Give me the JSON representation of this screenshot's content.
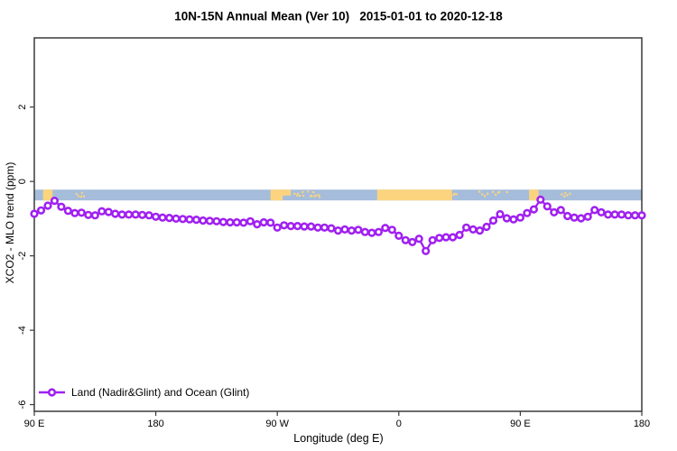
{
  "chart_data": {
    "type": "line",
    "title": "10N-15N Annual Mean (Ver 10)   2015-01-01 to 2020-12-18",
    "xlabel": "Longitude (deg E)",
    "ylabel": "XCO2 - MLO trend (ppm)",
    "xlim": [
      90,
      540
    ],
    "ylim": [
      -6.18,
      3.86
    ],
    "grid": false,
    "x_ticks": [
      {
        "x": 90,
        "label": "90 E"
      },
      {
        "x": 180,
        "label": "180"
      },
      {
        "x": 270,
        "label": "90 W"
      },
      {
        "x": 360,
        "label": "0"
      },
      {
        "x": 450,
        "label": "90 E"
      },
      {
        "x": 540,
        "label": "180"
      }
    ],
    "y_ticks": [
      {
        "v": 2,
        "label": "2"
      },
      {
        "v": 0,
        "label": "0"
      },
      {
        "v": -2,
        "label": "-2"
      },
      {
        "v": -4,
        "label": "-4"
      },
      {
        "v": -6,
        "label": "-6"
      }
    ],
    "axis_color": "#3a3a3a",
    "legend": {
      "position": "bottom-left"
    },
    "series": [
      {
        "name": "Land (Nadir&Glint) and Ocean (Glint)",
        "color": "#A020F0",
        "marker": "open-circle",
        "x": [
          90,
          95,
          100,
          105,
          110,
          115,
          120,
          125,
          130,
          135,
          140,
          145,
          150,
          155,
          160,
          165,
          170,
          175,
          180,
          185,
          190,
          195,
          200,
          205,
          210,
          215,
          220,
          225,
          230,
          235,
          240,
          245,
          250,
          255,
          260,
          265,
          270,
          275,
          280,
          285,
          290,
          295,
          300,
          305,
          310,
          315,
          320,
          325,
          330,
          335,
          340,
          345,
          350,
          355,
          360,
          365,
          370,
          375,
          380,
          385,
          390,
          395,
          400,
          405,
          410,
          415,
          420,
          425,
          430,
          435,
          440,
          445,
          450,
          455,
          460,
          465,
          470,
          475,
          480,
          485,
          490,
          495,
          500,
          505,
          510,
          515,
          520,
          525,
          530,
          535,
          540
        ],
        "values": [
          -0.87,
          -0.78,
          -0.65,
          -0.52,
          -0.68,
          -0.79,
          -0.85,
          -0.84,
          -0.9,
          -0.91,
          -0.8,
          -0.82,
          -0.87,
          -0.89,
          -0.89,
          -0.89,
          -0.9,
          -0.91,
          -0.95,
          -0.97,
          -0.98,
          -1.0,
          -1.01,
          -1.02,
          -1.03,
          -1.05,
          -1.06,
          -1.07,
          -1.09,
          -1.1,
          -1.1,
          -1.11,
          -1.07,
          -1.15,
          -1.1,
          -1.11,
          -1.24,
          -1.18,
          -1.2,
          -1.2,
          -1.21,
          -1.21,
          -1.24,
          -1.24,
          -1.26,
          -1.32,
          -1.29,
          -1.32,
          -1.3,
          -1.36,
          -1.38,
          -1.36,
          -1.25,
          -1.3,
          -1.46,
          -1.58,
          -1.63,
          -1.54,
          -1.87,
          -1.58,
          -1.52,
          -1.5,
          -1.5,
          -1.44,
          -1.24,
          -1.29,
          -1.32,
          -1.22,
          -1.05,
          -0.88,
          -0.99,
          -1.02,
          -0.97,
          -0.85,
          -0.75,
          -0.49,
          -0.67,
          -0.83,
          -0.77,
          -0.93,
          -0.97,
          -0.99,
          -0.95,
          -0.77,
          -0.83,
          -0.89,
          -0.89,
          -0.89,
          -0.91,
          -0.91,
          -0.91
        ]
      }
    ],
    "surface_band": {
      "y_range": [
        -0.22,
        -0.51
      ],
      "ocean_color": "#A5BDDB",
      "land_color": "#FCD47F",
      "land_segments": [
        {
          "from": 96.5,
          "to": 103.5,
          "frac": 1
        },
        {
          "from": 265,
          "to": 274,
          "frac": 1
        },
        {
          "from": 274,
          "to": 280,
          "frac": 0.55
        },
        {
          "from": 344,
          "to": 399.5,
          "frac": 1
        },
        {
          "from": 456.5,
          "to": 463.5,
          "frac": 1
        }
      ],
      "speckle_segments": [
        {
          "from": 120,
          "to": 127
        },
        {
          "from": 282,
          "to": 302
        },
        {
          "from": 400,
          "to": 403
        },
        {
          "from": 419,
          "to": 426
        },
        {
          "from": 429,
          "to": 434
        },
        {
          "from": 437.5,
          "to": 440.5
        },
        {
          "from": 480,
          "to": 487
        }
      ]
    }
  }
}
